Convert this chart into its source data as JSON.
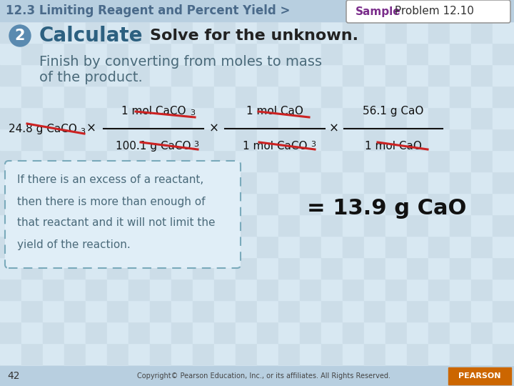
{
  "header_text": "12.3 Limiting Reagent and Percent Yield >",
  "header_text_color": "#4a6a8a",
  "sample_label": "Sample",
  "sample_color": "#7b2d8b",
  "problem_label": " Problem 12.10",
  "step_num": "2",
  "step_bg": "#5a8ab0",
  "calculate_text": "Calculate",
  "calculate_color": "#2c6080",
  "solve_text": "Solve for the unknown.",
  "solve_color": "#222222",
  "finish_line1": "Finish by converting from moles to mass",
  "finish_line2": "of the product.",
  "text_color_body": "#4a6a7a",
  "note_line1": "If there is an excess of a reactant,",
  "note_line2": "then there is more than enough of",
  "note_line3": "that reactant and it will not limit the",
  "note_line4": "yield of the reaction.",
  "result_text": "= 13.9 g CaO",
  "page_num": "42",
  "copyright": "Copyright© Pearson Education, Inc., or its affiliates. All Rights Reserved.",
  "bg_tile_a": "#ccdde8",
  "bg_tile_b": "#d8e8f2",
  "header_bar_color": "#b8cfe0",
  "footer_bar_color": "#b8cfe0",
  "text_color_eq": "#111111",
  "strike_color": "#cc2222",
  "note_edge_color": "#7aaabb",
  "note_fill_color": "#e0eef7",
  "pearson_box_color": "#cc6600"
}
